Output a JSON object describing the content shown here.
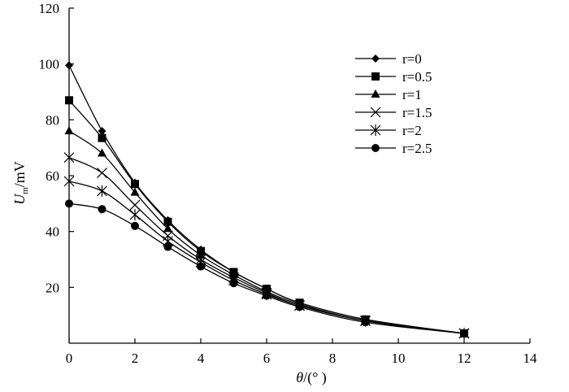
{
  "chart_data": {
    "type": "line",
    "title": "",
    "xlabel": {
      "symbol": "θ",
      "unit": "/(°  )"
    },
    "ylabel": {
      "symbol": "U",
      "subscript": "m",
      "unit": "/mV"
    },
    "xlim": [
      0,
      14
    ],
    "ylim": [
      0,
      120
    ],
    "xticks": [
      0,
      2,
      4,
      6,
      8,
      10,
      12,
      14
    ],
    "yticks": [
      20,
      40,
      60,
      80,
      100,
      120
    ],
    "ytick_top": 120,
    "grid": false,
    "legend_position": "top-right",
    "x": [
      0,
      1,
      2,
      3,
      4,
      5,
      6,
      7,
      9,
      12
    ],
    "series": [
      {
        "name": "r=0",
        "marker": "diamond",
        "values": [
          99.5,
          76,
          57.5,
          44,
          33.5,
          25.5,
          19.5,
          14.5,
          8.5,
          3.5
        ]
      },
      {
        "name": "r=0.5",
        "marker": "square",
        "values": [
          87,
          73.5,
          57,
          43.5,
          33,
          25.5,
          19.5,
          14.5,
          8.5,
          3.5
        ]
      },
      {
        "name": "r=1",
        "marker": "triangle",
        "values": [
          76,
          68,
          54,
          41,
          31.5,
          24.5,
          18.5,
          14,
          8,
          3.5
        ]
      },
      {
        "name": "r=1.5",
        "marker": "x",
        "values": [
          66.5,
          61,
          49.5,
          38.5,
          30,
          23.5,
          18,
          13.5,
          8,
          3.5
        ]
      },
      {
        "name": "r=2",
        "marker": "asterisk",
        "values": [
          58,
          54.5,
          46,
          36.5,
          29,
          22.5,
          17.5,
          13.5,
          8,
          3.5
        ]
      },
      {
        "name": "r=2.5",
        "marker": "circle",
        "values": [
          50,
          48,
          42,
          34.5,
          27.5,
          21.5,
          17,
          13,
          7.5,
          3.5
        ]
      }
    ]
  }
}
